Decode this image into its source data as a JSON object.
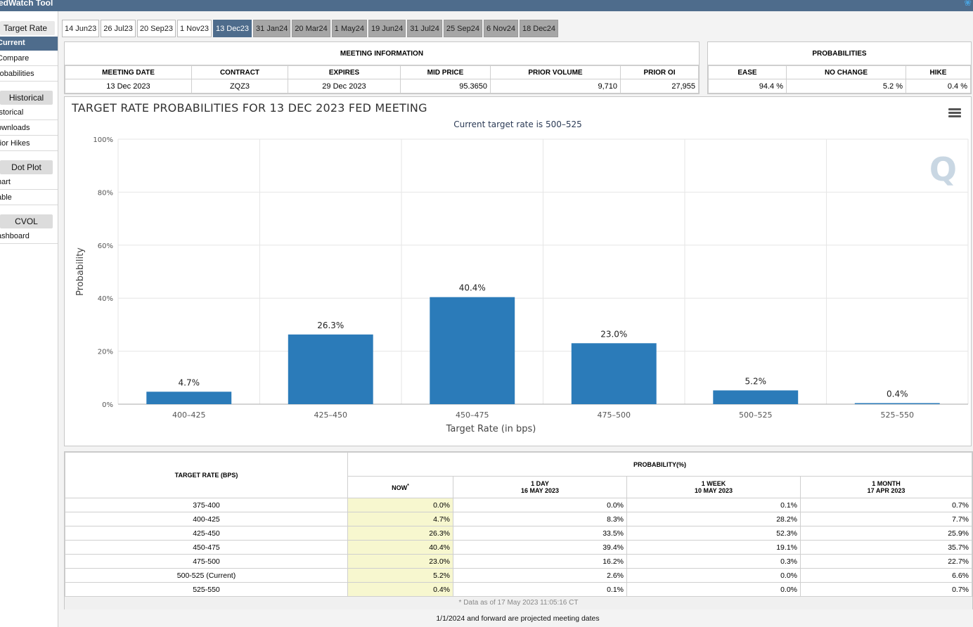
{
  "app": {
    "title": "edWatch Tool"
  },
  "sidebar": {
    "header": "Target Rate",
    "items_target": [
      "Current",
      "Compare",
      "robabilities"
    ],
    "historical_header": "Historical",
    "items_historical": [
      "istorical",
      "ownloads",
      "rior Hikes"
    ],
    "dotplot_header": "Dot Plot",
    "items_dotplot": [
      "hart",
      "able"
    ],
    "cvol_header": "CVOL",
    "items_cvol": [
      "ashboard"
    ]
  },
  "tabs": [
    {
      "label": "14 Jun23",
      "state": "past"
    },
    {
      "label": "26 Jul23",
      "state": "past"
    },
    {
      "label": "20 Sep23",
      "state": "past"
    },
    {
      "label": "1 Nov23",
      "state": "past"
    },
    {
      "label": "13 Dec23",
      "state": "active"
    },
    {
      "label": "31 Jan24",
      "state": "future"
    },
    {
      "label": "20 Mar24",
      "state": "future"
    },
    {
      "label": "1 May24",
      "state": "future"
    },
    {
      "label": "19 Jun24",
      "state": "future"
    },
    {
      "label": "31 Jul24",
      "state": "future"
    },
    {
      "label": "25 Sep24",
      "state": "future"
    },
    {
      "label": "6 Nov24",
      "state": "future"
    },
    {
      "label": "18 Dec24",
      "state": "future"
    }
  ],
  "meeting_info": {
    "title": "MEETING INFORMATION",
    "headers": [
      "MEETING DATE",
      "CONTRACT",
      "EXPIRES",
      "MID PRICE",
      "PRIOR VOLUME",
      "PRIOR OI"
    ],
    "values": [
      "13 Dec 2023",
      "ZQZ3",
      "29 Dec 2023",
      "95.3650",
      "9,710",
      "27,955"
    ]
  },
  "probabilities": {
    "title": "PROBABILITIES",
    "headers": [
      "EASE",
      "NO CHANGE",
      "HIKE"
    ],
    "values": [
      "94.4 %",
      "5.2 %",
      "0.4 %"
    ]
  },
  "chart_data": {
    "type": "bar",
    "title": "TARGET RATE PROBABILITIES FOR 13 DEC 2023 FED MEETING",
    "subtitle": "Current target rate is 500–525",
    "xlabel": "Target Rate (in bps)",
    "ylabel": "Probability",
    "categories": [
      "400–425",
      "425–450",
      "450–475",
      "475–500",
      "500–525",
      "525–550"
    ],
    "values": [
      4.7,
      26.3,
      40.4,
      23.0,
      5.2,
      0.4
    ],
    "data_labels": [
      "4.7%",
      "26.3%",
      "40.4%",
      "23.0%",
      "5.2%",
      "0.4%"
    ],
    "ylim": [
      0,
      100
    ],
    "yticks": [
      "0%",
      "20%",
      "40%",
      "60%",
      "80%",
      "100%"
    ],
    "ytick_values": [
      0,
      20,
      40,
      60,
      80,
      100
    ],
    "bar_color": "#2b7bb9",
    "grid": true,
    "logo": "Q"
  },
  "table": {
    "rate_header": "TARGET RATE (BPS)",
    "prob_header": "PROBABILITY(%)",
    "now_header": "NOW",
    "now_marker": "*",
    "col1_top": "1 DAY",
    "col1_bottom": "16 MAY 2023",
    "col2_top": "1 WEEK",
    "col2_bottom": "10 MAY 2023",
    "col3_top": "1 MONTH",
    "col3_bottom": "17 APR 2023",
    "rows": [
      {
        "rate": "375-400",
        "now": "0.0%",
        "day": "0.0%",
        "week": "0.1%",
        "month": "0.7%"
      },
      {
        "rate": "400-425",
        "now": "4.7%",
        "day": "8.3%",
        "week": "28.2%",
        "month": "7.7%"
      },
      {
        "rate": "425-450",
        "now": "26.3%",
        "day": "33.5%",
        "week": "52.3%",
        "month": "25.9%"
      },
      {
        "rate": "450-475",
        "now": "40.4%",
        "day": "39.4%",
        "week": "19.1%",
        "month": "35.7%"
      },
      {
        "rate": "475-500",
        "now": "23.0%",
        "day": "16.2%",
        "week": "0.3%",
        "month": "22.7%"
      },
      {
        "rate": "500-525 (Current)",
        "now": "5.2%",
        "day": "2.6%",
        "week": "0.0%",
        "month": "6.6%"
      },
      {
        "rate": "525-550",
        "now": "0.4%",
        "day": "0.1%",
        "week": "0.0%",
        "month": "0.7%"
      }
    ],
    "as_of": "* Data as of 17 May 2023 11:05:16 CT"
  },
  "footnote": "1/1/2024 and forward are projected meeting dates"
}
